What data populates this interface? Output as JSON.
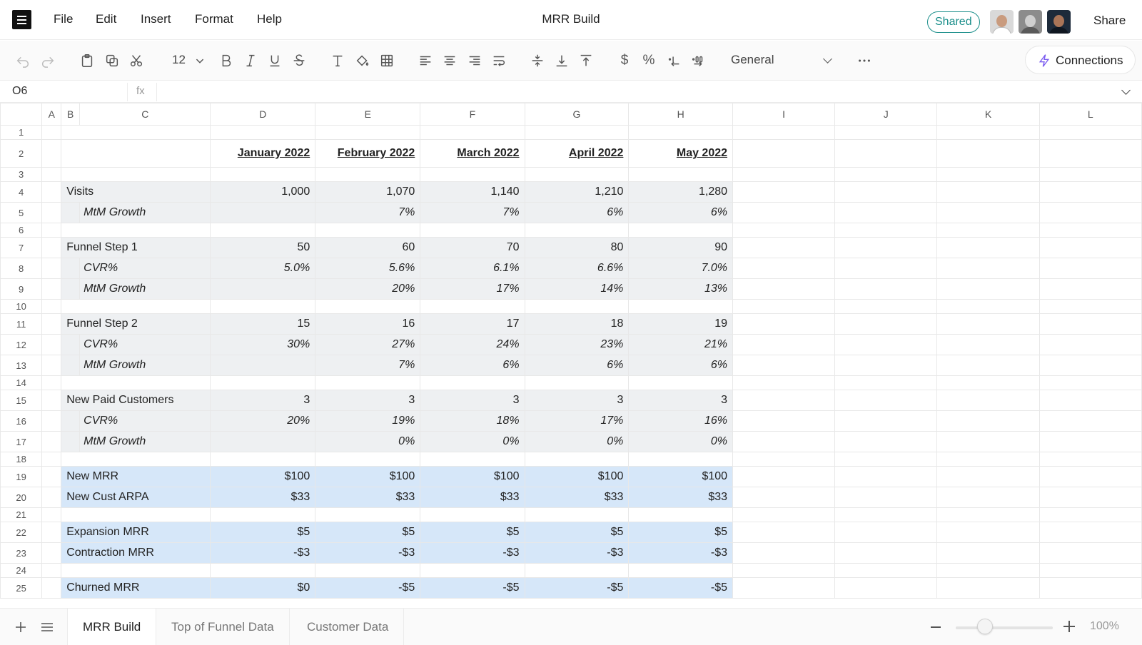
{
  "menu": [
    "File",
    "Edit",
    "Insert",
    "Format",
    "Help"
  ],
  "document": {
    "title": "MRR Build",
    "shared_label": "Shared",
    "share_label": "Share"
  },
  "toolbar": {
    "font_size": "12",
    "number_format": "General",
    "connections_label": "Connections",
    "currency_symbol": "$",
    "percent_symbol": "%"
  },
  "formula_bar": {
    "cell_ref": "O6",
    "fx_label": "fx",
    "value": ""
  },
  "columns": [
    "A",
    "B",
    "C",
    "D",
    "E",
    "F",
    "G",
    "H",
    "I",
    "J",
    "K",
    "L"
  ],
  "rows": [
    {
      "num": "1",
      "style": "empty",
      "label": "",
      "values": [
        "",
        "",
        "",
        "",
        ""
      ]
    },
    {
      "num": "2",
      "style": "header",
      "label": "",
      "values": [
        "January 2022",
        "February 2022",
        "March 2022",
        "April 2022",
        "May 2022"
      ]
    },
    {
      "num": "3",
      "style": "empty",
      "label": "",
      "values": [
        "",
        "",
        "",
        "",
        ""
      ]
    },
    {
      "num": "4",
      "style": "gray",
      "label": "Visits",
      "values": [
        "1,000",
        "1,070",
        "1,140",
        "1,210",
        "1,280"
      ]
    },
    {
      "num": "5",
      "style": "gray-sub",
      "label": "MtM Growth",
      "values": [
        "",
        "7%",
        "7%",
        "6%",
        "6%"
      ]
    },
    {
      "num": "6",
      "style": "empty",
      "label": "",
      "values": [
        "",
        "",
        "",
        "",
        ""
      ]
    },
    {
      "num": "7",
      "style": "gray",
      "label": "Funnel Step 1",
      "values": [
        "50",
        "60",
        "70",
        "80",
        "90"
      ]
    },
    {
      "num": "8",
      "style": "gray-sub",
      "label": "CVR%",
      "values": [
        "5.0%",
        "5.6%",
        "6.1%",
        "6.6%",
        "7.0%"
      ]
    },
    {
      "num": "9",
      "style": "gray-sub",
      "label": "MtM Growth",
      "values": [
        "",
        "20%",
        "17%",
        "14%",
        "13%"
      ]
    },
    {
      "num": "10",
      "style": "empty",
      "label": "",
      "values": [
        "",
        "",
        "",
        "",
        ""
      ]
    },
    {
      "num": "11",
      "style": "gray",
      "label": "Funnel Step 2",
      "values": [
        "15",
        "16",
        "17",
        "18",
        "19"
      ]
    },
    {
      "num": "12",
      "style": "gray-sub",
      "label": "CVR%",
      "values": [
        "30%",
        "27%",
        "24%",
        "23%",
        "21%"
      ]
    },
    {
      "num": "13",
      "style": "gray-sub",
      "label": "MtM Growth",
      "values": [
        "",
        "7%",
        "6%",
        "6%",
        "6%"
      ]
    },
    {
      "num": "14",
      "style": "empty",
      "label": "",
      "values": [
        "",
        "",
        "",
        "",
        ""
      ]
    },
    {
      "num": "15",
      "style": "gray",
      "label": "New Paid Customers",
      "values": [
        "3",
        "3",
        "3",
        "3",
        "3"
      ]
    },
    {
      "num": "16",
      "style": "gray-sub",
      "label": "CVR%",
      "values": [
        "20%",
        "19%",
        "18%",
        "17%",
        "16%"
      ]
    },
    {
      "num": "17",
      "style": "gray-sub",
      "label": "MtM Growth",
      "values": [
        "",
        "0%",
        "0%",
        "0%",
        "0%"
      ]
    },
    {
      "num": "18",
      "style": "empty",
      "label": "",
      "values": [
        "",
        "",
        "",
        "",
        ""
      ]
    },
    {
      "num": "19",
      "style": "blue",
      "label": "New MRR",
      "values": [
        "$100",
        "$100",
        "$100",
        "$100",
        "$100"
      ]
    },
    {
      "num": "20",
      "style": "blue-indent",
      "label": "New Cust ARPA",
      "values": [
        "$33",
        "$33",
        "$33",
        "$33",
        "$33"
      ]
    },
    {
      "num": "21",
      "style": "empty",
      "label": "",
      "values": [
        "",
        "",
        "",
        "",
        ""
      ]
    },
    {
      "num": "22",
      "style": "blue",
      "label": "Expansion MRR",
      "values": [
        "$5",
        "$5",
        "$5",
        "$5",
        "$5"
      ]
    },
    {
      "num": "23",
      "style": "blue",
      "label": "Contraction MRR",
      "values": [
        "-$3",
        "-$3",
        "-$3",
        "-$3",
        "-$3"
      ]
    },
    {
      "num": "24",
      "style": "empty",
      "label": "",
      "values": [
        "",
        "",
        "",
        "",
        ""
      ]
    },
    {
      "num": "25",
      "style": "blue",
      "label": "Churned MRR",
      "values": [
        "$0",
        "-$5",
        "-$5",
        "-$5",
        "-$5"
      ]
    }
  ],
  "sheet_tabs": [
    {
      "label": "MRR Build",
      "active": true
    },
    {
      "label": "Top of Funnel Data",
      "active": false
    },
    {
      "label": "Customer Data",
      "active": false
    }
  ],
  "zoom": {
    "label": "100%",
    "level": 0.3
  },
  "colors": {
    "gray_fill": "#eef0f2",
    "blue_fill": "#d6e7f9",
    "accent": "#1a8e8a"
  }
}
